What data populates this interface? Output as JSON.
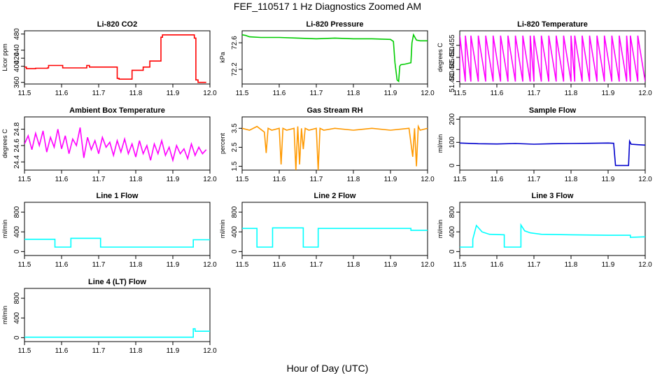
{
  "figure": {
    "title": "FEF_110517  1 Hz Diagnostics Zoomed AM",
    "xlabel": "Hour of Day (UTC)"
  },
  "chart_data": [
    {
      "type": "line",
      "title": "Li-820 CO2",
      "ylabel": "Licor ppm",
      "color": "#ff0000",
      "xlim": [
        11.5,
        12.0
      ],
      "ylim": [
        356,
        488
      ],
      "xticks": [
        11.5,
        11.6,
        11.7,
        11.8,
        11.9,
        12.0
      ],
      "xtick_labels": [
        "11.5",
        "11.6",
        "11.7",
        "11.8",
        "11.9",
        "12.0"
      ],
      "yticks": [
        360,
        400,
        420,
        440,
        480
      ],
      "ytick_labels": [
        "360",
        "400",
        "420",
        "440",
        "480"
      ],
      "series": [
        {
          "name": "CO2",
          "x": [
            11.5,
            11.505,
            11.505,
            11.53,
            11.53,
            11.562,
            11.562,
            11.565,
            11.565,
            11.603,
            11.603,
            11.632,
            11.632,
            11.668,
            11.668,
            11.675,
            11.675,
            11.75,
            11.75,
            11.755,
            11.755,
            11.79,
            11.79,
            11.82,
            11.82,
            11.838,
            11.838,
            11.868,
            11.868,
            11.872,
            11.872,
            11.94,
            11.94,
            11.958,
            11.958,
            11.962,
            11.962,
            11.968,
            11.968,
            11.99
          ],
          "y": [
            398,
            398,
            394,
            394,
            395,
            395,
            396,
            396,
            402,
            402,
            396,
            396,
            396,
            396,
            402,
            402,
            398,
            398,
            370,
            370,
            368,
            368,
            390,
            390,
            398,
            398,
            413,
            413,
            472,
            472,
            478,
            478,
            478,
            478,
            470,
            470,
            366,
            366,
            360,
            360
          ]
        }
      ]
    },
    {
      "type": "line",
      "title": "Li-820 Pressure",
      "ylabel": "kPa",
      "color": "#00cc00",
      "xlim": [
        11.5,
        12.0
      ],
      "ylim": [
        71.98,
        72.78
      ],
      "xticks": [
        11.5,
        11.6,
        11.7,
        11.8,
        11.9,
        12.0
      ],
      "xtick_labels": [
        "11.5",
        "11.6",
        "11.7",
        "11.8",
        "11.9",
        "12.0"
      ],
      "yticks": [
        72.2,
        72.6
      ],
      "ytick_labels": [
        "72.2",
        "72.6"
      ],
      "series": [
        {
          "name": "Pressure",
          "x": [
            11.5,
            11.51,
            11.52,
            11.55,
            11.6,
            11.65,
            11.7,
            11.75,
            11.8,
            11.85,
            11.9,
            11.908,
            11.912,
            11.918,
            11.922,
            11.925,
            11.928,
            11.94,
            11.955,
            11.958,
            11.962,
            11.966,
            11.97,
            11.98,
            12.0
          ],
          "y": [
            72.72,
            72.71,
            72.69,
            72.68,
            72.68,
            72.67,
            72.66,
            72.67,
            72.66,
            72.66,
            72.65,
            72.62,
            72.3,
            72.04,
            72.02,
            72.25,
            72.27,
            72.28,
            72.3,
            72.6,
            72.72,
            72.68,
            72.64,
            72.63,
            72.63
          ]
        }
      ]
    },
    {
      "type": "line",
      "title": "Li-820 Temperature",
      "ylabel": "degrees C",
      "color": "#ff00ff",
      "xlim": [
        11.5,
        12.0
      ],
      "ylim": [
        51.439,
        51.461
      ],
      "xticks": [
        11.5,
        11.6,
        11.7,
        11.8,
        11.9,
        12.0
      ],
      "xtick_labels": [
        "11.5",
        "11.6",
        "11.7",
        "11.8",
        "11.9",
        "12.0"
      ],
      "yticks": [
        51.44,
        51.445,
        51.45,
        51.455
      ],
      "ytick_labels": [
        "51.440",
        "51.445",
        "51.450",
        "51.455"
      ],
      "series": [
        {
          "name": "Temperature",
          "x": [
            11.5,
            11.5,
            11.515,
            11.515,
            11.53,
            11.53,
            11.55,
            11.55,
            11.57,
            11.57,
            11.59,
            11.59,
            11.61,
            11.61,
            11.63,
            11.63,
            11.65,
            11.65,
            11.67,
            11.67,
            11.69,
            11.69,
            11.7,
            11.7,
            11.72,
            11.72,
            11.74,
            11.74,
            11.76,
            11.76,
            11.78,
            11.78,
            11.8,
            11.8,
            11.81,
            11.81,
            11.83,
            11.83,
            11.85,
            11.85,
            11.87,
            11.87,
            11.89,
            11.89,
            11.91,
            11.91,
            11.93,
            11.93,
            11.95,
            11.95,
            11.96,
            11.96,
            11.98,
            11.98,
            12.0
          ],
          "y": [
            51.44,
            51.459,
            51.44,
            51.459,
            51.44,
            51.459,
            51.44,
            51.459,
            51.44,
            51.459,
            51.44,
            51.459,
            51.44,
            51.459,
            51.44,
            51.459,
            51.44,
            51.459,
            51.44,
            51.459,
            51.44,
            51.459,
            51.44,
            51.459,
            51.44,
            51.459,
            51.44,
            51.459,
            51.44,
            51.459,
            51.44,
            51.459,
            51.44,
            51.459,
            51.44,
            51.459,
            51.44,
            51.459,
            51.44,
            51.459,
            51.44,
            51.459,
            51.44,
            51.459,
            51.44,
            51.459,
            51.44,
            51.459,
            51.44,
            51.459,
            51.44,
            51.459,
            51.44,
            51.459,
            51.44
          ]
        }
      ]
    },
    {
      "type": "line",
      "title": "Ambient Box Temperature",
      "ylabel": "degrees C",
      "color": "#ff00ff",
      "xlim": [
        11.5,
        12.0
      ],
      "ylim": [
        24.3,
        24.95
      ],
      "xticks": [
        11.5,
        11.6,
        11.7,
        11.8,
        11.9,
        12.0
      ],
      "xtick_labels": [
        "11.5",
        "11.6",
        "11.7",
        "11.8",
        "11.9",
        "12.0"
      ],
      "yticks": [
        24.4,
        24.6,
        24.8
      ],
      "ytick_labels": [
        "24.4",
        "24.6",
        "24.8"
      ],
      "series": [
        {
          "name": "Ambient",
          "x": [
            11.5,
            11.51,
            11.52,
            11.53,
            11.54,
            11.55,
            11.56,
            11.57,
            11.58,
            11.59,
            11.6,
            11.61,
            11.62,
            11.63,
            11.64,
            11.65,
            11.66,
            11.67,
            11.68,
            11.69,
            11.7,
            11.71,
            11.72,
            11.73,
            11.74,
            11.75,
            11.76,
            11.77,
            11.78,
            11.79,
            11.8,
            11.81,
            11.82,
            11.83,
            11.84,
            11.85,
            11.86,
            11.87,
            11.88,
            11.89,
            11.9,
            11.91,
            11.92,
            11.93,
            11.94,
            11.95,
            11.96,
            11.97,
            11.98,
            11.99
          ],
          "y": [
            24.62,
            24.72,
            24.55,
            24.75,
            24.6,
            24.78,
            24.52,
            24.7,
            24.58,
            24.8,
            24.56,
            24.72,
            24.5,
            24.68,
            24.6,
            24.82,
            24.45,
            24.7,
            24.55,
            24.66,
            24.5,
            24.7,
            24.58,
            24.64,
            24.48,
            24.66,
            24.52,
            24.68,
            24.5,
            24.62,
            24.46,
            24.66,
            24.5,
            24.6,
            24.42,
            24.62,
            24.5,
            24.66,
            24.48,
            24.58,
            24.42,
            24.6,
            24.5,
            24.56,
            24.44,
            24.62,
            24.48,
            24.58,
            24.5,
            24.55
          ]
        }
      ]
    },
    {
      "type": "line",
      "title": "Gas Stream RH",
      "ylabel": "percent",
      "color": "#ff9900",
      "xlim": [
        11.5,
        12.0
      ],
      "ylim": [
        1.3,
        4.1
      ],
      "xticks": [
        11.5,
        11.6,
        11.7,
        11.8,
        11.9,
        12.0
      ],
      "xtick_labels": [
        "11.5",
        "11.6",
        "11.7",
        "11.8",
        "11.9",
        "12.0"
      ],
      "yticks": [
        1.5,
        2.5,
        3.5
      ],
      "ytick_labels": [
        "1.5",
        "2.5",
        "3.5"
      ],
      "series": [
        {
          "name": "RH",
          "x": [
            11.5,
            11.52,
            11.54,
            11.56,
            11.565,
            11.57,
            11.58,
            11.6,
            11.605,
            11.61,
            11.62,
            11.64,
            11.645,
            11.65,
            11.655,
            11.66,
            11.665,
            11.67,
            11.68,
            11.7,
            11.705,
            11.71,
            11.72,
            11.75,
            11.8,
            11.85,
            11.9,
            11.95,
            11.96,
            11.965,
            11.97,
            11.975,
            11.98,
            12.0
          ],
          "y": [
            3.5,
            3.4,
            3.6,
            3.3,
            2.2,
            3.5,
            3.4,
            3.5,
            1.6,
            3.5,
            3.4,
            3.5,
            1.3,
            3.6,
            1.6,
            3.5,
            2.4,
            3.5,
            3.4,
            3.5,
            1.3,
            3.5,
            3.4,
            3.5,
            3.4,
            3.5,
            3.4,
            3.5,
            2.0,
            3.5,
            1.5,
            3.6,
            3.4,
            3.5
          ]
        }
      ]
    },
    {
      "type": "line",
      "title": "Sample Flow",
      "ylabel": "ml/min",
      "color": "#0000cc",
      "xlim": [
        11.5,
        12.0
      ],
      "ylim": [
        -20,
        210
      ],
      "xticks": [
        11.5,
        11.6,
        11.7,
        11.8,
        11.9,
        12.0
      ],
      "xtick_labels": [
        "11.5",
        "11.6",
        "11.7",
        "11.8",
        "11.9",
        "12.0"
      ],
      "yticks": [
        0,
        100,
        200
      ],
      "ytick_labels": [
        "0",
        "100",
        "200"
      ],
      "series": [
        {
          "name": "Sample",
          "x": [
            11.5,
            11.55,
            11.6,
            11.65,
            11.7,
            11.75,
            11.8,
            11.85,
            11.9,
            11.915,
            11.92,
            11.955,
            11.958,
            11.962,
            11.98,
            12.0
          ],
          "y": [
            97,
            94,
            93,
            95,
            92,
            94,
            95,
            96,
            97,
            96,
            0,
            0,
            105,
            92,
            90,
            88
          ]
        }
      ]
    },
    {
      "type": "line",
      "title": "Line 1 Flow",
      "ylabel": "ml/min",
      "color": "#00ffff",
      "xlim": [
        11.5,
        12.0
      ],
      "ylim": [
        -80,
        1000
      ],
      "xticks": [
        11.5,
        11.6,
        11.7,
        11.8,
        11.9,
        12.0
      ],
      "xtick_labels": [
        "11.5",
        "11.6",
        "11.7",
        "11.8",
        "11.9",
        "12.0"
      ],
      "yticks": [
        0,
        400,
        800
      ],
      "ytick_labels": [
        "0",
        "400",
        "800"
      ],
      "series": [
        {
          "name": "Line 1",
          "x": [
            11.5,
            11.582,
            11.582,
            11.625,
            11.625,
            11.705,
            11.705,
            11.955,
            11.955,
            12.0
          ],
          "y": [
            250,
            250,
            90,
            90,
            270,
            270,
            90,
            90,
            240,
            240
          ]
        }
      ]
    },
    {
      "type": "line",
      "title": "Line 2 Flow",
      "ylabel": "ml/min",
      "color": "#00ffff",
      "xlim": [
        11.5,
        12.0
      ],
      "ylim": [
        -80,
        1000
      ],
      "xticks": [
        11.5,
        11.6,
        11.7,
        11.8,
        11.9,
        12.0
      ],
      "xtick_labels": [
        "11.5",
        "11.6",
        "11.7",
        "11.8",
        "11.9",
        "12.0"
      ],
      "yticks": [
        0,
        400,
        800
      ],
      "ytick_labels": [
        "0",
        "400",
        "800"
      ],
      "series": [
        {
          "name": "Line 2",
          "x": [
            11.5,
            11.54,
            11.54,
            11.582,
            11.582,
            11.665,
            11.665,
            11.705,
            11.705,
            11.955,
            11.955,
            12.0
          ],
          "y": [
            470,
            470,
            90,
            90,
            480,
            480,
            90,
            90,
            470,
            470,
            430,
            430
          ]
        }
      ]
    },
    {
      "type": "line",
      "title": "Line 3 Flow",
      "ylabel": "ml/min",
      "color": "#00ffff",
      "xlim": [
        11.5,
        12.0
      ],
      "ylim": [
        -80,
        1000
      ],
      "xticks": [
        11.5,
        11.6,
        11.7,
        11.8,
        11.9,
        12.0
      ],
      "xtick_labels": [
        "11.5",
        "11.6",
        "11.7",
        "11.8",
        "11.9",
        "12.0"
      ],
      "yticks": [
        0,
        400,
        800
      ],
      "ytick_labels": [
        "0",
        "400",
        "800"
      ],
      "series": [
        {
          "name": "Line 3",
          "x": [
            11.5,
            11.535,
            11.535,
            11.545,
            11.56,
            11.58,
            11.62,
            11.62,
            11.665,
            11.665,
            11.675,
            11.69,
            11.72,
            11.8,
            11.9,
            11.96,
            11.96,
            12.0
          ],
          "y": [
            90,
            90,
            250,
            530,
            400,
            350,
            340,
            90,
            90,
            540,
            420,
            380,
            350,
            340,
            330,
            330,
            290,
            300
          ]
        }
      ]
    },
    {
      "type": "line",
      "title": "Line 4 (LT) Flow",
      "ylabel": "ml/min",
      "color": "#00ffff",
      "xlim": [
        11.5,
        12.0
      ],
      "ylim": [
        -80,
        1000
      ],
      "xticks": [
        11.5,
        11.6,
        11.7,
        11.8,
        11.9,
        12.0
      ],
      "xtick_labels": [
        "11.5",
        "11.6",
        "11.7",
        "11.8",
        "11.9",
        "12.0"
      ],
      "yticks": [
        0,
        400,
        800
      ],
      "ytick_labels": [
        "0",
        "400",
        "800"
      ],
      "series": [
        {
          "name": "Line 4",
          "x": [
            11.5,
            11.955,
            11.955,
            11.96,
            11.96,
            12.0
          ],
          "y": [
            10,
            10,
            180,
            180,
            130,
            130
          ]
        }
      ]
    }
  ]
}
